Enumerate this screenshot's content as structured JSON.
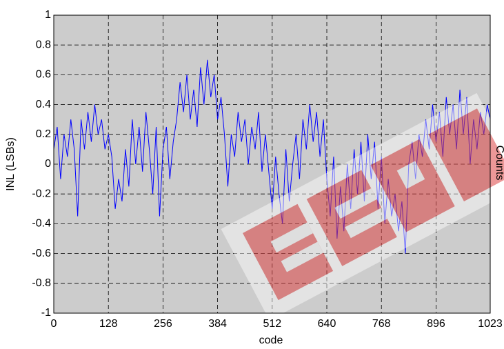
{
  "chart_data": {
    "type": "line",
    "xlabel": "code",
    "ylabel": "INL (LSBs)",
    "annotation": "Counts",
    "xlim": [
      0,
      1023
    ],
    "ylim": [
      -1,
      1
    ],
    "xticks": [
      0,
      128,
      256,
      384,
      512,
      640,
      768,
      896,
      1023
    ],
    "yticks": [
      -1,
      -0.8,
      -0.6,
      -0.4,
      -0.2,
      0,
      0.2,
      0.4,
      0.6,
      0.8,
      1
    ],
    "grid": true,
    "background": "#cccccc",
    "series": [
      {
        "color": "#0000ff",
        "x": [
          0,
          8,
          16,
          24,
          32,
          40,
          48,
          56,
          64,
          72,
          80,
          88,
          96,
          104,
          112,
          120,
          128,
          136,
          144,
          152,
          160,
          168,
          176,
          184,
          192,
          200,
          208,
          216,
          224,
          232,
          240,
          248,
          256,
          264,
          272,
          280,
          288,
          296,
          304,
          312,
          320,
          328,
          336,
          344,
          352,
          360,
          368,
          376,
          384,
          392,
          400,
          408,
          416,
          424,
          432,
          440,
          448,
          456,
          464,
          472,
          480,
          488,
          496,
          504,
          512,
          520,
          528,
          536,
          544,
          552,
          560,
          568,
          576,
          584,
          592,
          600,
          608,
          616,
          624,
          632,
          640,
          648,
          656,
          664,
          672,
          680,
          688,
          696,
          704,
          712,
          720,
          728,
          736,
          744,
          752,
          760,
          768,
          776,
          784,
          792,
          800,
          808,
          816,
          824,
          832,
          840,
          848,
          856,
          864,
          872,
          880,
          888,
          896,
          904,
          912,
          920,
          928,
          936,
          944,
          952,
          960,
          968,
          976,
          984,
          992,
          1000,
          1008,
          1016,
          1023
        ],
        "values": [
          0.1,
          0.25,
          -0.1,
          0.2,
          0.05,
          0.3,
          0.1,
          -0.35,
          0.3,
          0.1,
          0.35,
          0.15,
          0.4,
          0.2,
          0.3,
          0.1,
          0.2,
          0.05,
          -0.3,
          -0.1,
          -0.25,
          0.1,
          -0.15,
          0.3,
          0.0,
          0.25,
          -0.05,
          0.35,
          0.1,
          -0.2,
          0.25,
          -0.35,
          0.1,
          0.25,
          -0.1,
          0.15,
          0.3,
          0.55,
          0.35,
          0.6,
          0.3,
          0.5,
          0.25,
          0.65,
          0.4,
          0.7,
          0.45,
          0.6,
          0.3,
          0.45,
          0.2,
          -0.15,
          0.2,
          0.05,
          0.35,
          0.15,
          0.3,
          0.0,
          0.25,
          0.1,
          0.35,
          -0.05,
          0.2,
          -0.05,
          -0.3,
          0.05,
          -0.2,
          -0.4,
          0.1,
          -0.25,
          0.0,
          0.2,
          -0.1,
          0.3,
          0.1,
          0.4,
          0.15,
          0.35,
          0.05,
          0.3,
          -0.1,
          -0.35,
          0.05,
          -0.5,
          -0.15,
          -0.45,
          0.0,
          -0.3,
          0.1,
          -0.2,
          0.15,
          -0.25,
          0.2,
          -0.1,
          0.15,
          -0.3,
          0.05,
          -0.4,
          -0.1,
          -0.35,
          -0.2,
          -0.45,
          -0.25,
          -0.6,
          0.0,
          0.15,
          -0.1,
          0.2,
          0.05,
          0.3,
          0.1,
          0.4,
          0.15,
          0.35,
          0.05,
          0.45,
          0.2,
          0.4,
          0.1,
          0.5,
          0.2,
          0.45,
          0.0,
          0.3,
          0.1,
          0.35,
          0.2,
          0.4,
          0.3
        ]
      }
    ]
  }
}
